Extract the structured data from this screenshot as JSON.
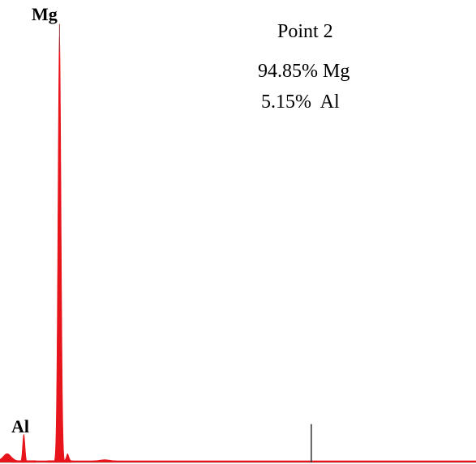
{
  "chart_data": {
    "type": "area",
    "title": "",
    "xlabel": "",
    "ylabel": "",
    "grid": false,
    "legend": "none",
    "xlim": [
      0,
      10
    ],
    "ylim": [
      0,
      100
    ],
    "colors": {
      "spectrum": "#e8141b",
      "marker": "#333333",
      "baseline": "#999999"
    },
    "peaks": [
      {
        "element": "Mg",
        "x": 1.25,
        "y": 94.85
      },
      {
        "element": "Al",
        "x": 0.5,
        "y": 6.2
      }
    ],
    "marker_line": {
      "x": 6.54,
      "y": 8.5
    },
    "annotation": {
      "point": "Point 2",
      "lines": [
        "94.85% Mg",
        "5.15%  Al"
      ]
    }
  }
}
